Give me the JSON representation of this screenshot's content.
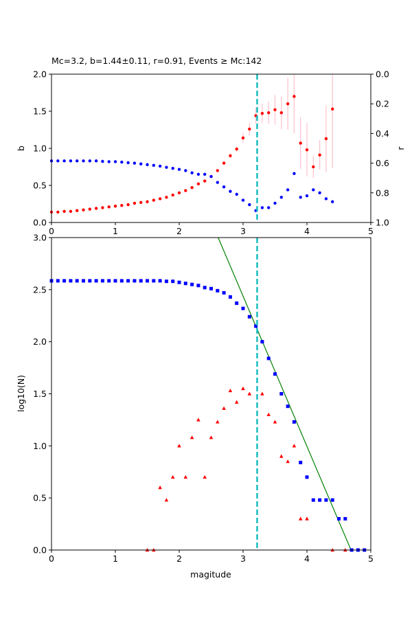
{
  "chart_data": [
    {
      "type": "scatter",
      "title": "Mc=3.2, b=1.44±0.11, r=0.91, Events ≥ Mc:142",
      "xlabel": "",
      "ylabel": "b",
      "y2label": "r",
      "xlim": [
        0,
        5
      ],
      "ylim": [
        0,
        2.0
      ],
      "y2lim": [
        1.0,
        0.0
      ],
      "x_ticks": [
        "0",
        "1",
        "2",
        "3",
        "4",
        "5"
      ],
      "y_ticks": [
        "0.0",
        "0.5",
        "1.0",
        "1.5",
        "2.0"
      ],
      "y2_ticks": [
        "0.0",
        "0.2",
        "0.4",
        "0.6",
        "0.8",
        "1.0"
      ],
      "mc_line": 3.22,
      "colors": {
        "b": "#ff0000",
        "r": "#0000ff",
        "err": "#ffc0cb",
        "mc": "#17bcc0"
      },
      "series": [
        {
          "axis": "left",
          "marker": "dot",
          "x": [
            0.0,
            0.1,
            0.2,
            0.3,
            0.4,
            0.5,
            0.6,
            0.7,
            0.8,
            0.9,
            1.0,
            1.1,
            1.2,
            1.3,
            1.4,
            1.5,
            1.6,
            1.7,
            1.8,
            1.9,
            2.0,
            2.1,
            2.2,
            2.3,
            2.4,
            2.5,
            2.6,
            2.7,
            2.8,
            2.9,
            3.0,
            3.1,
            3.2,
            3.3,
            3.4,
            3.5,
            3.6,
            3.7,
            3.8,
            3.9,
            4.0,
            4.1,
            4.2,
            4.3,
            4.4
          ],
          "y": [
            0.14,
            0.14,
            0.15,
            0.15,
            0.16,
            0.17,
            0.18,
            0.19,
            0.2,
            0.21,
            0.22,
            0.23,
            0.24,
            0.26,
            0.27,
            0.28,
            0.3,
            0.32,
            0.34,
            0.37,
            0.4,
            0.43,
            0.47,
            0.52,
            0.56,
            0.62,
            0.7,
            0.8,
            0.9,
            0.99,
            1.14,
            1.26,
            1.44,
            1.47,
            1.48,
            1.52,
            1.48,
            1.6,
            1.7,
            1.07,
            0.98,
            0.75,
            0.91,
            1.13,
            1.53
          ],
          "err": [
            0,
            0,
            0,
            0,
            0,
            0,
            0,
            0,
            0,
            0,
            0,
            0,
            0,
            0,
            0,
            0,
            0,
            0,
            0,
            0,
            0,
            0,
            0,
            0,
            0,
            0,
            0.01,
            0.02,
            0.03,
            0.04,
            0.07,
            0.09,
            0.11,
            0.13,
            0.15,
            0.2,
            0.22,
            0.35,
            0.5,
            0.35,
            0.36,
            0.15,
            0.2,
            0.45,
            0.8
          ]
        },
        {
          "axis": "right",
          "marker": "dot",
          "x": [
            0.0,
            0.1,
            0.2,
            0.3,
            0.4,
            0.5,
            0.6,
            0.7,
            0.8,
            0.9,
            1.0,
            1.1,
            1.2,
            1.3,
            1.4,
            1.5,
            1.6,
            1.7,
            1.8,
            1.9,
            2.0,
            2.1,
            2.2,
            2.3,
            2.4,
            2.5,
            2.6,
            2.7,
            2.8,
            2.9,
            3.0,
            3.1,
            3.2,
            3.3,
            3.4,
            3.5,
            3.6,
            3.7,
            3.8,
            3.9,
            4.0,
            4.1,
            4.2,
            4.3,
            4.4
          ],
          "y": [
            0.585,
            0.585,
            0.585,
            0.585,
            0.585,
            0.585,
            0.585,
            0.585,
            0.588,
            0.59,
            0.59,
            0.593,
            0.597,
            0.6,
            0.605,
            0.61,
            0.615,
            0.62,
            0.628,
            0.635,
            0.642,
            0.65,
            0.665,
            0.675,
            0.675,
            0.69,
            0.73,
            0.76,
            0.79,
            0.81,
            0.85,
            0.88,
            0.92,
            0.9,
            0.9,
            0.87,
            0.83,
            0.78,
            0.67,
            0.83,
            0.82,
            0.78,
            0.8,
            0.84,
            0.86
          ]
        }
      ]
    },
    {
      "type": "scatter",
      "title": "",
      "xlabel": "magitude",
      "ylabel": "log10(N)",
      "xlim": [
        0,
        5
      ],
      "ylim": [
        0,
        3.0
      ],
      "x_ticks": [
        "0",
        "1",
        "2",
        "3",
        "4",
        "5"
      ],
      "y_ticks": [
        "0.0",
        "0.5",
        "1.0",
        "1.5",
        "2.0",
        "2.5",
        "3.0"
      ],
      "mc_line": 3.22,
      "fit_line": {
        "x": [
          2.61,
          4.69
        ],
        "y": [
          3.0,
          0.0
        ],
        "color": "#008000"
      },
      "colors": {
        "cumulative": "#0000ff",
        "noncumulative": "#ff0000",
        "mc": "#17bcc0"
      },
      "series": [
        {
          "marker": "square",
          "x": [
            0.0,
            0.1,
            0.2,
            0.3,
            0.4,
            0.5,
            0.6,
            0.7,
            0.8,
            0.9,
            1.0,
            1.1,
            1.2,
            1.3,
            1.4,
            1.5,
            1.6,
            1.7,
            1.8,
            1.9,
            2.0,
            2.1,
            2.2,
            2.3,
            2.4,
            2.5,
            2.6,
            2.7,
            2.8,
            2.9,
            3.0,
            3.1,
            3.2,
            3.3,
            3.4,
            3.5,
            3.6,
            3.7,
            3.8,
            3.9,
            4.0,
            4.1,
            4.2,
            4.3,
            4.4,
            4.5,
            4.6,
            4.7,
            4.8,
            4.9
          ],
          "y": [
            2.585,
            2.585,
            2.585,
            2.585,
            2.585,
            2.585,
            2.585,
            2.585,
            2.585,
            2.585,
            2.585,
            2.585,
            2.585,
            2.585,
            2.585,
            2.585,
            2.585,
            2.585,
            2.58,
            2.58,
            2.57,
            2.56,
            2.55,
            2.54,
            2.52,
            2.51,
            2.49,
            2.47,
            2.43,
            2.37,
            2.32,
            2.24,
            2.15,
            2.0,
            1.84,
            1.69,
            1.5,
            1.38,
            1.23,
            0.84,
            0.7,
            0.48,
            0.48,
            0.48,
            0.48,
            0.3,
            0.3,
            0.0,
            0.0,
            0.0
          ]
        },
        {
          "marker": "triangle",
          "x": [
            1.5,
            1.6,
            1.7,
            1.8,
            1.9,
            2.0,
            2.1,
            2.2,
            2.3,
            2.4,
            2.5,
            2.6,
            2.7,
            2.8,
            2.9,
            3.0,
            3.1,
            3.3,
            3.4,
            3.5,
            3.6,
            3.7,
            3.8,
            3.9,
            4.0,
            4.4,
            4.6
          ],
          "y": [
            0.0,
            0.0,
            0.6,
            0.48,
            0.7,
            1.0,
            0.7,
            1.08,
            1.25,
            0.7,
            1.08,
            1.23,
            1.36,
            1.53,
            1.42,
            1.55,
            1.5,
            1.5,
            1.3,
            1.23,
            0.9,
            0.85,
            1.0,
            0.3,
            0.3,
            0.0,
            0.0
          ]
        }
      ]
    }
  ]
}
